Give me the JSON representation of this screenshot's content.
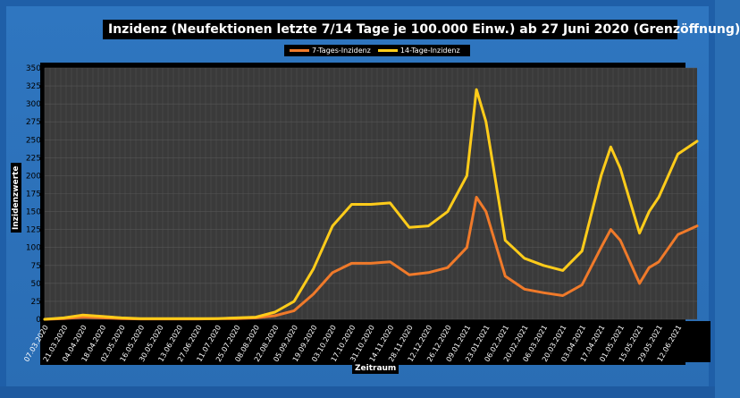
{
  "colors": {
    "background": "#2b6fb5",
    "plot_background": "#3a3a3a",
    "grid": "#555555",
    "series_7": "#f07a2a",
    "series_14": "#ffcc1a"
  },
  "chart_data": {
    "type": "line",
    "title": "Inzidenz (Neufektionen letzte 7/14 Tage je 100.000 Einw.) ab 27 Juni 2020 (Grenzöffnung)",
    "xlabel": "Zeitraum",
    "ylabel": "Inzidenzwerte",
    "ylim": [
      0,
      350
    ],
    "yticks": [
      0,
      25,
      50,
      75,
      100,
      125,
      150,
      175,
      200,
      225,
      250,
      275,
      300,
      325,
      350
    ],
    "grid": true,
    "legend_position": "top-center",
    "x_tick_labels": [
      "07.03.2020",
      "21.03.2020",
      "04.04.2020",
      "18.04.2020",
      "02.05.2020",
      "16.05.2020",
      "30.05.2020",
      "13.06.2020",
      "27.06.2020",
      "11.07.2020",
      "25.07.2020",
      "08.08.2020",
      "22.08.2020",
      "05.09.2020",
      "19.09.2020",
      "03.10.2020",
      "17.10.2020",
      "31.10.2020",
      "14.11.2020",
      "28.11.2020",
      "12.12.2020",
      "26.12.2020",
      "09.01.2021",
      "23.01.2021",
      "06.02.2021",
      "20.02.2021",
      "06.03.2021",
      "20.03.2021",
      "03.04.2021",
      "17.04.2021",
      "01.05.2021",
      "15.05.2021",
      "29.05.2021",
      "12.06.2021"
    ],
    "series": [
      {
        "name": "7-Tages-Inzidenz",
        "x": [
          "07.03.2020",
          "21.03.2020",
          "04.04.2020",
          "18.04.2020",
          "02.05.2020",
          "16.05.2020",
          "30.05.2020",
          "13.06.2020",
          "27.06.2020",
          "11.07.2020",
          "25.07.2020",
          "08.08.2020",
          "22.08.2020",
          "05.09.2020",
          "19.09.2020",
          "03.10.2020",
          "17.10.2020",
          "31.10.2020",
          "14.11.2020",
          "28.11.2020",
          "12.12.2020",
          "26.12.2020",
          "09.01.2021",
          "16.01.2021",
          "23.01.2021",
          "06.02.2021",
          "20.02.2021",
          "06.03.2021",
          "20.03.2021",
          "03.04.2021",
          "17.04.2021",
          "24.04.2021",
          "01.05.2021",
          "15.05.2021",
          "22.05.2021",
          "29.05.2021",
          "12.06.2021",
          "26.06.2021"
        ],
        "values": [
          0,
          1,
          3,
          2,
          1,
          0.5,
          0.5,
          0.5,
          0.5,
          1,
          1,
          2,
          5,
          12,
          35,
          65,
          78,
          78,
          80,
          62,
          65,
          72,
          100,
          170,
          150,
          60,
          42,
          37,
          33,
          48,
          100,
          125,
          110,
          50,
          72,
          80,
          118,
          130
        ]
      },
      {
        "name": "14-Tage-Inzidenz",
        "x": [
          "07.03.2020",
          "21.03.2020",
          "04.04.2020",
          "18.04.2020",
          "02.05.2020",
          "16.05.2020",
          "30.05.2020",
          "13.06.2020",
          "27.06.2020",
          "11.07.2020",
          "25.07.2020",
          "08.08.2020",
          "22.08.2020",
          "05.09.2020",
          "19.09.2020",
          "03.10.2020",
          "17.10.2020",
          "31.10.2020",
          "14.11.2020",
          "28.11.2020",
          "12.12.2020",
          "26.12.2020",
          "09.01.2021",
          "16.01.2021",
          "23.01.2021",
          "06.02.2021",
          "20.02.2021",
          "06.03.2021",
          "20.03.2021",
          "03.04.2021",
          "17.04.2021",
          "24.04.2021",
          "01.05.2021",
          "15.05.2021",
          "22.05.2021",
          "29.05.2021",
          "12.06.2021",
          "26.06.2021"
        ],
        "values": [
          0,
          2,
          6,
          4,
          2,
          1,
          1,
          1,
          1,
          1,
          2,
          3,
          10,
          25,
          70,
          130,
          160,
          160,
          162,
          128,
          130,
          150,
          200,
          320,
          275,
          110,
          85,
          75,
          68,
          95,
          200,
          240,
          210,
          120,
          150,
          170,
          230,
          248
        ]
      }
    ]
  }
}
